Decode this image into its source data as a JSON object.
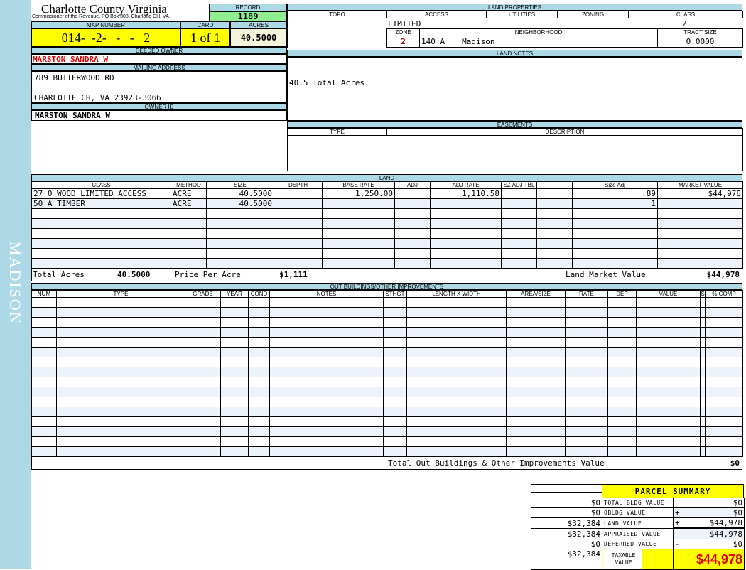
{
  "sidebar_label": "MADISON",
  "header": {
    "county": "Charlotte County Virginia",
    "office": "Commissioner of the Revenue, PO Box 308, Charlotte CH, VA",
    "record_label": "RECORD",
    "record": "1189"
  },
  "map": {
    "map_label": "MAP NUMBER",
    "map_number": "014-  -2-   -   -   2",
    "card_label": "CARD",
    "card": "1 of 1",
    "acres_label": "ACRES",
    "acres": "40.5000"
  },
  "owner": {
    "deeded_label": "DEEDED OWNER",
    "deeded": "MARSTON SANDRA W",
    "mailing_label": "MAILING ADDRESS",
    "address1": "789 BUTTERWOOD RD",
    "address2": "CHARLOTTE CH, VA 23923-3066",
    "owner_id_label": "OWNER ID",
    "owner_id": "MARSTON SANDRA W"
  },
  "land_properties": {
    "title": "LAND PROPERTIES",
    "cols": [
      "TOPO",
      "ACCESS",
      "UTILITIES",
      "ZONING",
      "CLASS"
    ],
    "access": "LIMITED",
    "class": "2",
    "zone_label": "ZONE",
    "neighborhood_label": "NEIGHBORHOOD",
    "tract_label": "TRACT SIZE",
    "zone": "2",
    "neighborhood_code": "140 A",
    "neighborhood": "Madison",
    "tract_size": "0.0000"
  },
  "land_notes": {
    "title": "LAND NOTES",
    "text": "40.5 Total Acres"
  },
  "easements": {
    "title": "EASEMENTS",
    "cols": [
      "TYPE",
      "DESCRIPTION"
    ]
  },
  "land": {
    "title": "LAND",
    "cols": [
      "CLASS",
      "METHOD",
      "SIZE",
      "DEPTH",
      "BASE RATE",
      "ADJ",
      "ADJ RATE",
      "SZ ADJ TBL",
      "",
      "Size Adj",
      "MARKET VALUE"
    ],
    "rows": [
      [
        "27 0 WOOD LIMITED ACCESS",
        "ACRE",
        "40.5000",
        "",
        "1,250.00",
        "",
        "1,110.58",
        "",
        "",
        ".89",
        "$44,978"
      ],
      [
        "50 A TIMBER",
        "ACRE",
        "40.5000",
        "",
        "",
        "",
        "",
        "",
        "",
        "1",
        ""
      ]
    ],
    "total_acres_label": "Total Acres",
    "total_acres": "40.5000",
    "ppa_label": "Price Per Acre",
    "ppa": "$1,111",
    "lmv_label": "Land Market Value",
    "lmv": "$44,978"
  },
  "outbuildings": {
    "title": "OUT BUILDINGS/OTHER IMPROVEMENTS",
    "cols": [
      "NUM",
      "TYPE",
      "GRADE",
      "YEAR",
      "COND",
      "NOTES",
      "STHGT",
      "LENGTH X WIDTH",
      "AREA/SIZE",
      "RATE",
      "DEP",
      "VALUE",
      "S",
      "% COMP"
    ],
    "total_label": "Total Out Buildings & Other Improvements Value",
    "total": "$0"
  },
  "summary": {
    "title": "PARCEL SUMMARY",
    "rows": [
      {
        "prev": "$0",
        "label": "TOTAL BLDG VALUE",
        "op": "",
        "value": "$0"
      },
      {
        "prev": "$0",
        "label": "OBLDG VALUE",
        "op": "+",
        "value": "$0"
      },
      {
        "prev": "$32,384",
        "label": "LAND VALUE",
        "op": "+",
        "value": "$44,978"
      },
      {
        "prev": "$32,384",
        "label": "APPRAISED VALUE",
        "op": "",
        "value": "$44,978"
      },
      {
        "prev": "$0",
        "label": "DEFERRED VALUE",
        "op": "-",
        "value": "$0"
      }
    ],
    "taxable_prev": "$32,384",
    "taxable_label": "TAXABLE VALUE",
    "taxable": "$44,978"
  }
}
